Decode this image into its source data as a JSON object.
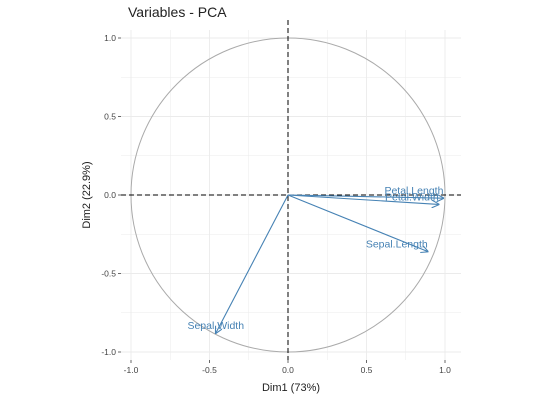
{
  "chart_data": {
    "type": "scatter",
    "title": "Variables - PCA",
    "xlabel": "Dim1 (73%)",
    "ylabel": "Dim2 (22.9%)",
    "xlim": [
      -1.0,
      1.0
    ],
    "ylim": [
      -1.0,
      1.0
    ],
    "xticks": [
      "-1.0",
      "-0.5",
      "0.0",
      "0.5",
      "1.0"
    ],
    "yticks": [
      "-1.0",
      "-0.5",
      "0.0",
      "0.5",
      "1.0"
    ],
    "grid": true,
    "correlation_circle": true,
    "arrow_color": "#4682b4",
    "variables": [
      {
        "name": "Sepal.Length",
        "x": 0.89,
        "y": -0.36
      },
      {
        "name": "Sepal.Width",
        "x": -0.46,
        "y": -0.88
      },
      {
        "name": "Petal.Length",
        "x": 0.99,
        "y": -0.02
      },
      {
        "name": "Petal.Width",
        "x": 0.96,
        "y": -0.06
      }
    ]
  }
}
